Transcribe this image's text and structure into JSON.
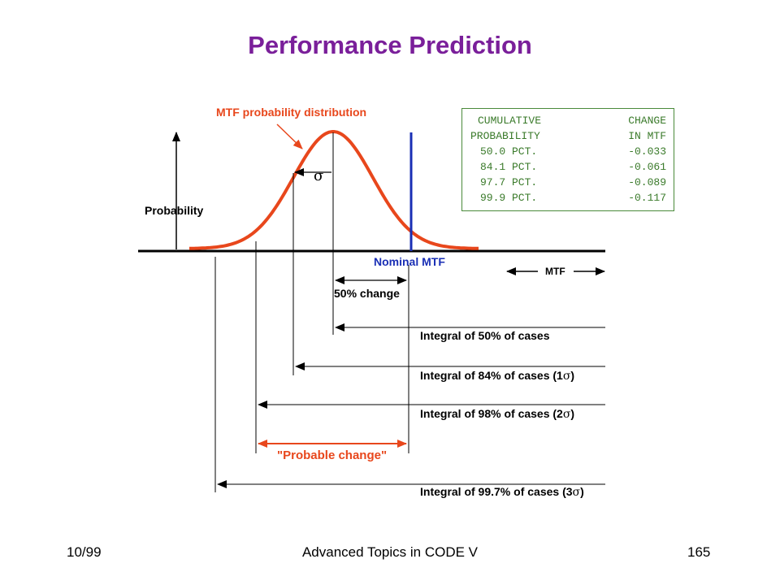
{
  "title": "Performance Prediction",
  "labels": {
    "distribution": "MTF probability distribution",
    "probability": "Probability",
    "sigma": "σ",
    "nominal_mtf": "Nominal MTF",
    "mtf_axis": "MTF",
    "fifty_change": "50% change",
    "probable_change": "\"Probable change\""
  },
  "integrals": [
    {
      "text": "Integral of 50% of cases"
    },
    {
      "text": "Integral of 84% of cases (1",
      "sigma": "σ",
      "close": ")"
    },
    {
      "text": "Integral of 98% of cases (2",
      "sigma": "σ",
      "close": ")"
    },
    {
      "text": "Integral of 99.7% of cases (3",
      "sigma": "σ",
      "close": ")"
    }
  ],
  "table": {
    "header1": [
      "CUMULATIVE",
      "CHANGE"
    ],
    "header2": [
      "PROBABILITY",
      "IN MTF"
    ],
    "rows": [
      [
        "50.0 PCT.",
        "-0.033"
      ],
      [
        "84.1 PCT.",
        "-0.061"
      ],
      [
        "97.7 PCT.",
        "-0.089"
      ],
      [
        "99.9 PCT.",
        "-0.117"
      ]
    ]
  },
  "footer": {
    "left": "10/99",
    "center": "Advanced Topics in CODE V",
    "right": "165"
  },
  "colors": {
    "title": "#7a1f9a",
    "curve": "#e8471c",
    "nominal": "#1a2fb5",
    "table": "#3a7a2a"
  }
}
